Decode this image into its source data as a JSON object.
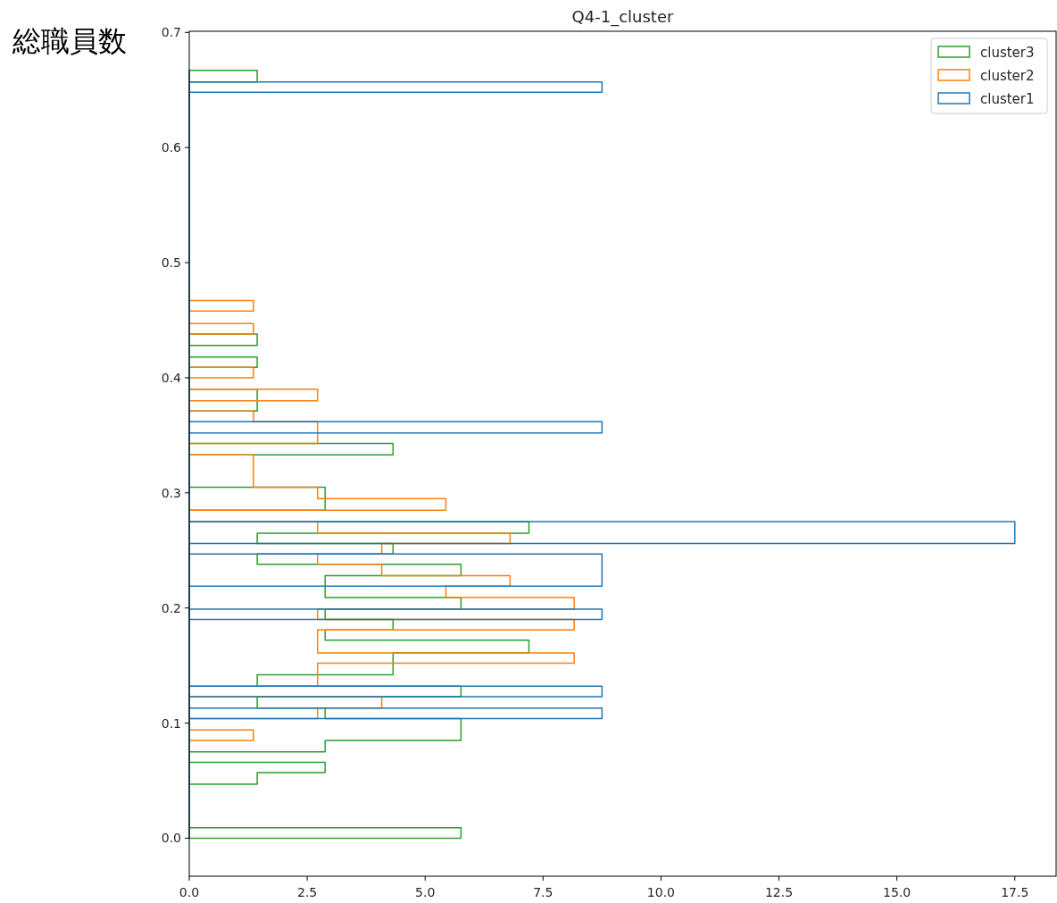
{
  "chart_data": {
    "type": "histogram",
    "orientation": "horizontal",
    "title": "Q4-1_cluster",
    "ylabel": "総職員数",
    "xlim": [
      0,
      18.375
    ],
    "ylim": [
      -0.033,
      0.701
    ],
    "xticks": [
      {
        "value": 0,
        "label": "0.0"
      },
      {
        "value": 2.5,
        "label": "2.5"
      },
      {
        "value": 5,
        "label": "5.0"
      },
      {
        "value": 7.5,
        "label": "7.5"
      },
      {
        "value": 10,
        "label": "10.0"
      },
      {
        "value": 12.5,
        "label": "12.5"
      },
      {
        "value": 15,
        "label": "15.0"
      },
      {
        "value": 17.5,
        "label": "17.5"
      }
    ],
    "yticks": [
      {
        "value": 0,
        "label": "0.0"
      },
      {
        "value": 0.1,
        "label": "0.1"
      },
      {
        "value": 0.2,
        "label": "0.2"
      },
      {
        "value": 0.3,
        "label": "0.3"
      },
      {
        "value": 0.4,
        "label": "0.4"
      },
      {
        "value": 0.5,
        "label": "0.5"
      },
      {
        "value": 0.6,
        "label": "0.6"
      },
      {
        "value": 0.7,
        "label": "0.7"
      }
    ],
    "legend": "top right",
    "bins": [
      0,
      0.009,
      0.047,
      0.057,
      0.066,
      0.075,
      0.085,
      0.094,
      0.104,
      0.113,
      0.123,
      0.132,
      0.142,
      0.152,
      0.161,
      0.172,
      0.181,
      0.19,
      0.199,
      0.209,
      0.219,
      0.228,
      0.238,
      0.247,
      0.256,
      0.265,
      0.275,
      0.285,
      0.295,
      0.305,
      0.333,
      0.343,
      0.352,
      0.362,
      0.371,
      0.38,
      0.39,
      0.4,
      0.409,
      0.418,
      0.428,
      0.438,
      0.447,
      0.458,
      0.467,
      0.648,
      0.657,
      0.667
    ],
    "series": [
      {
        "name": "cluster3",
        "color": "#2ca02c",
        "values": [
          5.76,
          0,
          1.44,
          2.88,
          0,
          2.88,
          5.76,
          5.76,
          2.88,
          1.44,
          5.76,
          1.44,
          4.32,
          4.32,
          7.2,
          2.88,
          4.32,
          2.88,
          5.76,
          2.88,
          2.88,
          5.76,
          1.44,
          4.32,
          1.44,
          7.2,
          0,
          2.88,
          2.88,
          0,
          4.32,
          0,
          0,
          0,
          1.44,
          1.44,
          0,
          0,
          1.44,
          0,
          1.44,
          0,
          0,
          0,
          0,
          0,
          1.44
        ]
      },
      {
        "name": "cluster2",
        "color": "#ff7f0e",
        "values": [
          0,
          0,
          0,
          0,
          0,
          0,
          1.36,
          0,
          2.72,
          4.08,
          0,
          2.72,
          2.72,
          8.16,
          2.72,
          2.72,
          8.16,
          2.72,
          8.16,
          5.44,
          6.8,
          4.08,
          2.72,
          4.08,
          6.8,
          2.72,
          0,
          5.44,
          2.72,
          1.36,
          0,
          2.72,
          2.72,
          1.36,
          0,
          2.72,
          0,
          1.36,
          0,
          0,
          0,
          1.36,
          0,
          1.36,
          0,
          0,
          0
        ]
      },
      {
        "name": "cluster1",
        "color": "#1f77b4",
        "values": [
          0,
          0,
          0,
          0,
          0,
          0,
          0,
          0,
          8.75,
          0,
          8.75,
          0,
          0,
          0,
          0,
          0,
          0,
          8.75,
          0,
          0,
          8.75,
          8.75,
          8.75,
          0,
          17.5,
          17.5,
          0,
          0,
          0,
          0,
          0,
          0,
          8.75,
          0,
          0,
          0,
          0,
          0,
          0,
          0,
          0,
          0,
          0,
          0,
          0,
          8.75,
          0
        ]
      }
    ]
  }
}
